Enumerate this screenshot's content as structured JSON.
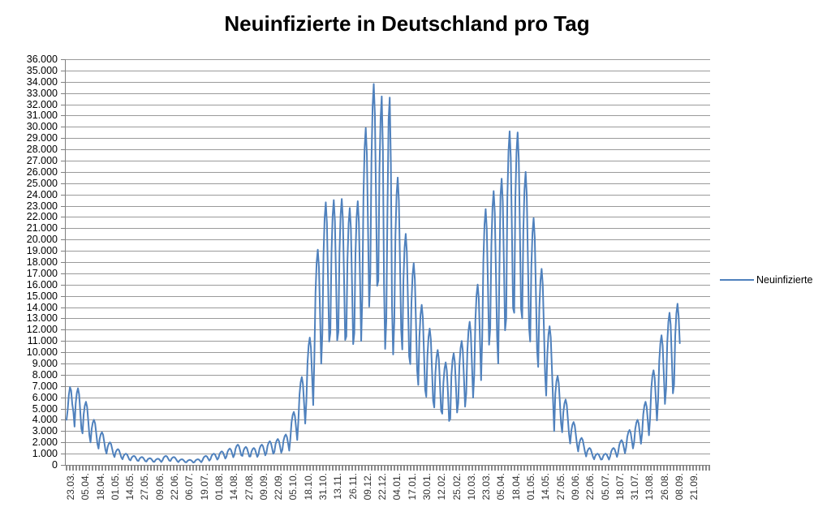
{
  "page": {
    "background": "#ffffff"
  },
  "header": {
    "title": "Neuinfizierte in Deutschland pro Tag"
  },
  "legend": {
    "label": "Neuinfizierte"
  },
  "colors": {
    "series": "#4F81BD",
    "gridline": "#9a9a9a",
    "axis": "#808080",
    "text": "#000000"
  },
  "chart_data": {
    "type": "line",
    "title": "Neuinfizierte in Deutschland pro Tag",
    "grid": true,
    "legend_position": "right",
    "y_axis": {
      "min": 0,
      "max": 36000,
      "step": 1000,
      "tick_labels": [
        "36.000",
        "35.000",
        "34.000",
        "33.000",
        "32.000",
        "31.000",
        "30.000",
        "29.000",
        "28.000",
        "27.000",
        "26.000",
        "25.000",
        "24.000",
        "23.000",
        "22.000",
        "21.000",
        "20.000",
        "19.000",
        "18.000",
        "17.000",
        "16.000",
        "15.000",
        "14.000",
        "13.000",
        "12.000",
        "11.000",
        "10.000",
        "9.000",
        "8.000",
        "7.000",
        "6.000",
        "5.000",
        "4.000",
        "3.000",
        "2.000",
        "1.000",
        "0"
      ]
    },
    "x_axis": {
      "tick_interval_days": 13,
      "total_days": 560,
      "tick_labels": [
        "23.03.",
        "05.04.",
        "18.04.",
        "01.05.",
        "14.05.",
        "27.05.",
        "09.06.",
        "22.06.",
        "06.07.",
        "19.07.",
        "01.08.",
        "14.08.",
        "27.08.",
        "09.09.",
        "22.09.",
        "05.10.",
        "18.10.",
        "31.10.",
        "13.11.",
        "26.11.",
        "09.12.",
        "22.12.",
        "04.01.",
        "17.01.",
        "30.01.",
        "12.02.",
        "25.02.",
        "10.03.",
        "23.03.",
        "05.04.",
        "18.04.",
        "01.05.",
        "14.05.",
        "27.05.",
        "09.06.",
        "22.06.",
        "05.07.",
        "18.07.",
        "31.07.",
        "13.08.",
        "26.08.",
        "08.09.",
        "21.09."
      ]
    },
    "series": [
      {
        "name": "Neuinfizierte",
        "color": "#4F81BD",
        "first_day_label": "23.03.",
        "values": [
          4000,
          4900,
          6200,
          6900,
          6600,
          5400,
          4700,
          3400,
          5440,
          6390,
          6800,
          6260,
          4760,
          3200,
          2800,
          4480,
          5260,
          5600,
          5150,
          3920,
          2630,
          2000,
          3200,
          3760,
          4000,
          3680,
          2800,
          1880,
          1450,
          2320,
          2730,
          2900,
          2670,
          2030,
          1360,
          1000,
          1600,
          1880,
          2000,
          1840,
          1400,
          940,
          700,
          1120,
          1320,
          1400,
          1290,
          980,
          660,
          500,
          800,
          940,
          1000,
          920,
          700,
          470,
          400,
          640,
          750,
          800,
          740,
          560,
          380,
          350,
          560,
          660,
          700,
          640,
          490,
          330,
          300,
          480,
          560,
          600,
          550,
          420,
          280,
          280,
          440,
          520,
          550,
          510,
          390,
          260,
          400,
          640,
          750,
          800,
          740,
          560,
          380,
          350,
          560,
          660,
          700,
          640,
          490,
          330,
          250,
          400,
          470,
          500,
          460,
          350,
          240,
          230,
          360,
          420,
          450,
          410,
          320,
          210,
          250,
          400,
          470,
          500,
          460,
          350,
          240,
          400,
          640,
          750,
          800,
          740,
          560,
          380,
          500,
          800,
          940,
          1000,
          920,
          700,
          470,
          600,
          960,
          1130,
          1200,
          1100,
          840,
          560,
          730,
          1160,
          1360,
          1450,
          1330,
          1020,
          680,
          900,
          1440,
          1690,
          1800,
          1660,
          1260,
          850,
          800,
          1280,
          1500,
          1600,
          1470,
          1120,
          750,
          750,
          1200,
          1410,
          1500,
          1380,
          1050,
          710,
          900,
          1440,
          1690,
          1800,
          1660,
          1260,
          850,
          1050,
          1680,
          1970,
          2100,
          1930,
          1470,
          990,
          1150,
          1840,
          2160,
          2300,
          2120,
          1610,
          1080,
          1350,
          2160,
          2540,
          2700,
          2480,
          1890,
          1270,
          2350,
          3760,
          4420,
          4700,
          4320,
          3290,
          2210,
          3900,
          6240,
          7330,
          7800,
          7180,
          5460,
          3670,
          5650,
          9040,
          10620,
          11300,
          10400,
          7910,
          5310,
          9550,
          15280,
          17950,
          19100,
          17570,
          13370,
          8980,
          11650,
          18640,
          21900,
          23300,
          21440,
          16310,
          10950,
          11750,
          18800,
          22090,
          23500,
          21620,
          16450,
          11050,
          11800,
          18880,
          22180,
          23600,
          21710,
          16520,
          11090,
          11400,
          18240,
          21430,
          22800,
          20980,
          15960,
          10720,
          11700,
          18720,
          22000,
          23400,
          21530,
          16380,
          11000,
          14950,
          23920,
          28110,
          29900,
          27510,
          20930,
          14050,
          16900,
          27040,
          31770,
          33800,
          31100,
          23660,
          15890,
          16350,
          26160,
          30740,
          32700,
          28000,
          16000,
          10300,
          12800,
          22500,
          30650,
          32600,
          26700,
          14000,
          9800,
          12750,
          20400,
          23970,
          25500,
          23460,
          17850,
          11990,
          10250,
          16400,
          19270,
          20500,
          18860,
          14350,
          9640,
          8950,
          14320,
          16830,
          17900,
          16470,
          12530,
          8410,
          7100,
          11360,
          13350,
          14200,
          13060,
          9940,
          6670,
          6050,
          9680,
          11370,
          12100,
          11130,
          8470,
          5690,
          5100,
          8160,
          9590,
          10200,
          9380,
          7140,
          4790,
          4550,
          7280,
          8550,
          9100,
          8370,
          6370,
          3900,
          4100,
          7920,
          9310,
          9900,
          9110,
          6930,
          4650,
          5500,
          8800,
          10340,
          11000,
          10120,
          7700,
          5170,
          6350,
          10160,
          11940,
          12700,
          11680,
          8890,
          5970,
          8000,
          12800,
          15040,
          16000,
          14720,
          11200,
          7520,
          11350,
          18160,
          21340,
          22700,
          20880,
          15890,
          10670,
          12150,
          19440,
          22840,
          24300,
          22360,
          17010,
          11420,
          9000,
          17000,
          23880,
          25400,
          23370,
          17780,
          11940,
          13000,
          23680,
          27820,
          29600,
          27230,
          20720,
          13910,
          13500,
          23600,
          27730,
          29500,
          27140,
          20650,
          13870,
          13000,
          20800,
          24440,
          26000,
          23920,
          18200,
          12220,
          10950,
          17520,
          20590,
          21900,
          20150,
          15330,
          10290,
          8700,
          13920,
          16360,
          17400,
          16010,
          12180,
          8180,
          6150,
          9840,
          11560,
          12300,
          11320,
          8610,
          5780,
          3000,
          6320,
          7430,
          7900,
          7270,
          5530,
          3710,
          2900,
          4640,
          5450,
          5800,
          5340,
          4060,
          2730,
          1900,
          3040,
          3570,
          3800,
          3500,
          2660,
          1790,
          1200,
          1920,
          2260,
          2400,
          2210,
          1680,
          1130,
          750,
          1200,
          1410,
          1500,
          1380,
          1050,
          710,
          500,
          800,
          940,
          1000,
          920,
          700,
          470,
          500,
          800,
          940,
          1000,
          920,
          700,
          470,
          750,
          1200,
          1410,
          1500,
          1380,
          1050,
          710,
          1100,
          1760,
          2070,
          2200,
          2020,
          1540,
          1030,
          1550,
          2480,
          2910,
          3100,
          2850,
          2170,
          1460,
          2000,
          3200,
          3760,
          4000,
          3680,
          2800,
          1880,
          2800,
          4480,
          5260,
          5600,
          5150,
          3920,
          2630,
          4200,
          6720,
          7900,
          8400,
          7730,
          5880,
          3950,
          5750,
          9200,
          10810,
          11500,
          10580,
          8050,
          5410,
          6750,
          10800,
          12690,
          13500,
          12420,
          9450,
          6350,
          7150,
          11440,
          13440,
          14300,
          13160,
          10800
        ]
      }
    ]
  }
}
